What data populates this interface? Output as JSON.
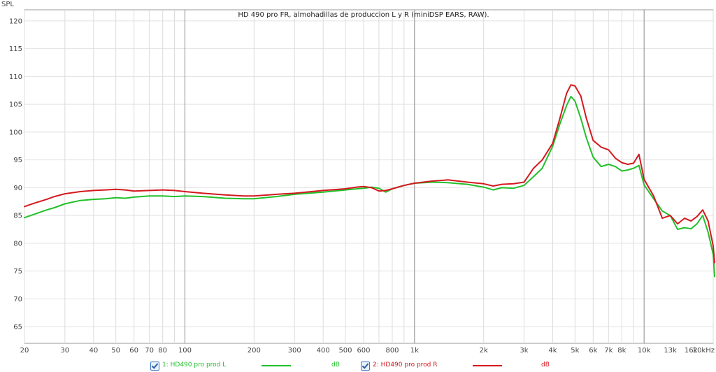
{
  "chart_data": {
    "type": "line",
    "title": "HD 490 pro FR, almohadillas de produccion L y R (miniDSP EARS, RAW).",
    "ylabel": "SPL",
    "x_scale": "log",
    "xlim": [
      20,
      20000
    ],
    "ylim": [
      62,
      122
    ],
    "y_ticks": [
      65,
      70,
      75,
      80,
      85,
      90,
      95,
      100,
      105,
      110,
      115,
      120
    ],
    "x_ticks": [
      {
        "v": 20,
        "label": "20"
      },
      {
        "v": 30,
        "label": "30"
      },
      {
        "v": 40,
        "label": "40"
      },
      {
        "v": 50,
        "label": "50"
      },
      {
        "v": 60,
        "label": "60"
      },
      {
        "v": 70,
        "label": "70"
      },
      {
        "v": 80,
        "label": "80"
      },
      {
        "v": 100,
        "label": "100"
      },
      {
        "v": 200,
        "label": "200"
      },
      {
        "v": 300,
        "label": "300"
      },
      {
        "v": 400,
        "label": "400"
      },
      {
        "v": 500,
        "label": "500"
      },
      {
        "v": 600,
        "label": "600"
      },
      {
        "v": 800,
        "label": "800"
      },
      {
        "v": 1000,
        "label": "1k"
      },
      {
        "v": 2000,
        "label": "2k"
      },
      {
        "v": 3000,
        "label": "3k"
      },
      {
        "v": 4000,
        "label": "4k"
      },
      {
        "v": 5000,
        "label": "5k"
      },
      {
        "v": 6000,
        "label": "6k"
      },
      {
        "v": 7000,
        "label": "7k"
      },
      {
        "v": 8000,
        "label": "8k"
      },
      {
        "v": 10000,
        "label": "10k"
      },
      {
        "v": 13000,
        "label": "13k"
      },
      {
        "v": 16000,
        "label": "16k"
      },
      {
        "v": 20000,
        "label": "20kHz"
      }
    ],
    "grid": true,
    "series": [
      {
        "name": "1: HD490 pro prod L",
        "unit": "dB",
        "color": "#22c02a",
        "points": [
          [
            20,
            84.6
          ],
          [
            22,
            85.2
          ],
          [
            25,
            86.0
          ],
          [
            27,
            86.4
          ],
          [
            30,
            87.1
          ],
          [
            35,
            87.7
          ],
          [
            40,
            87.9
          ],
          [
            45,
            88.0
          ],
          [
            50,
            88.2
          ],
          [
            55,
            88.1
          ],
          [
            60,
            88.3
          ],
          [
            70,
            88.5
          ],
          [
            80,
            88.5
          ],
          [
            90,
            88.4
          ],
          [
            100,
            88.5
          ],
          [
            120,
            88.4
          ],
          [
            150,
            88.1
          ],
          [
            180,
            88.0
          ],
          [
            200,
            88.0
          ],
          [
            250,
            88.4
          ],
          [
            300,
            88.8
          ],
          [
            400,
            89.2
          ],
          [
            500,
            89.6
          ],
          [
            560,
            89.8
          ],
          [
            600,
            89.9
          ],
          [
            650,
            90.1
          ],
          [
            700,
            89.9
          ],
          [
            750,
            89.2
          ],
          [
            800,
            89.8
          ],
          [
            900,
            90.4
          ],
          [
            1000,
            90.8
          ],
          [
            1200,
            91.0
          ],
          [
            1400,
            90.9
          ],
          [
            1700,
            90.6
          ],
          [
            2000,
            90.1
          ],
          [
            2200,
            89.6
          ],
          [
            2400,
            90.0
          ],
          [
            2700,
            89.9
          ],
          [
            3000,
            90.4
          ],
          [
            3300,
            92.0
          ],
          [
            3600,
            93.5
          ],
          [
            4000,
            97.5
          ],
          [
            4300,
            101.5
          ],
          [
            4600,
            104.8
          ],
          [
            4800,
            106.4
          ],
          [
            5000,
            105.6
          ],
          [
            5300,
            102.5
          ],
          [
            5600,
            99.0
          ],
          [
            6000,
            95.5
          ],
          [
            6500,
            93.8
          ],
          [
            7000,
            94.2
          ],
          [
            7500,
            93.8
          ],
          [
            8000,
            93.0
          ],
          [
            8500,
            93.2
          ],
          [
            9000,
            93.5
          ],
          [
            9500,
            94.0
          ],
          [
            10000,
            90.5
          ],
          [
            11000,
            88.0
          ],
          [
            12000,
            85.8
          ],
          [
            13000,
            85.0
          ],
          [
            14000,
            82.5
          ],
          [
            15000,
            82.8
          ],
          [
            16000,
            82.6
          ],
          [
            17000,
            83.5
          ],
          [
            18000,
            85.0
          ],
          [
            19000,
            82.0
          ],
          [
            20000,
            78.0
          ],
          [
            21000,
            74.0
          ]
        ]
      },
      {
        "name": "2: HD490 pro prod R",
        "unit": "dB",
        "color": "#d4191f",
        "points": [
          [
            20,
            86.6
          ],
          [
            22,
            87.2
          ],
          [
            25,
            87.9
          ],
          [
            27,
            88.4
          ],
          [
            30,
            88.9
          ],
          [
            35,
            89.3
          ],
          [
            40,
            89.5
          ],
          [
            45,
            89.6
          ],
          [
            50,
            89.7
          ],
          [
            55,
            89.6
          ],
          [
            60,
            89.4
          ],
          [
            70,
            89.5
          ],
          [
            80,
            89.6
          ],
          [
            90,
            89.5
          ],
          [
            100,
            89.3
          ],
          [
            120,
            89.0
          ],
          [
            150,
            88.7
          ],
          [
            180,
            88.5
          ],
          [
            200,
            88.5
          ],
          [
            250,
            88.8
          ],
          [
            300,
            89.0
          ],
          [
            400,
            89.5
          ],
          [
            500,
            89.8
          ],
          [
            560,
            90.1
          ],
          [
            600,
            90.2
          ],
          [
            650,
            90.0
          ],
          [
            700,
            89.4
          ],
          [
            750,
            89.5
          ],
          [
            800,
            89.8
          ],
          [
            900,
            90.4
          ],
          [
            1000,
            90.8
          ],
          [
            1200,
            91.2
          ],
          [
            1400,
            91.4
          ],
          [
            1700,
            91.0
          ],
          [
            2000,
            90.7
          ],
          [
            2200,
            90.3
          ],
          [
            2400,
            90.6
          ],
          [
            2700,
            90.7
          ],
          [
            3000,
            91.0
          ],
          [
            3300,
            93.5
          ],
          [
            3600,
            95.0
          ],
          [
            4000,
            98.0
          ],
          [
            4300,
            102.5
          ],
          [
            4600,
            107.0
          ],
          [
            4800,
            108.5
          ],
          [
            5000,
            108.3
          ],
          [
            5300,
            106.5
          ],
          [
            5600,
            102.5
          ],
          [
            6000,
            98.5
          ],
          [
            6500,
            97.3
          ],
          [
            7000,
            96.8
          ],
          [
            7500,
            95.3
          ],
          [
            8000,
            94.5
          ],
          [
            8500,
            94.2
          ],
          [
            9000,
            94.4
          ],
          [
            9500,
            96.0
          ],
          [
            10000,
            91.5
          ],
          [
            11000,
            88.5
          ],
          [
            12000,
            84.5
          ],
          [
            13000,
            85.0
          ],
          [
            14000,
            83.5
          ],
          [
            15000,
            84.5
          ],
          [
            16000,
            84.0
          ],
          [
            17000,
            84.8
          ],
          [
            18000,
            86.0
          ],
          [
            19000,
            84.0
          ],
          [
            20000,
            79.5
          ],
          [
            21000,
            76.5
          ]
        ]
      }
    ]
  }
}
